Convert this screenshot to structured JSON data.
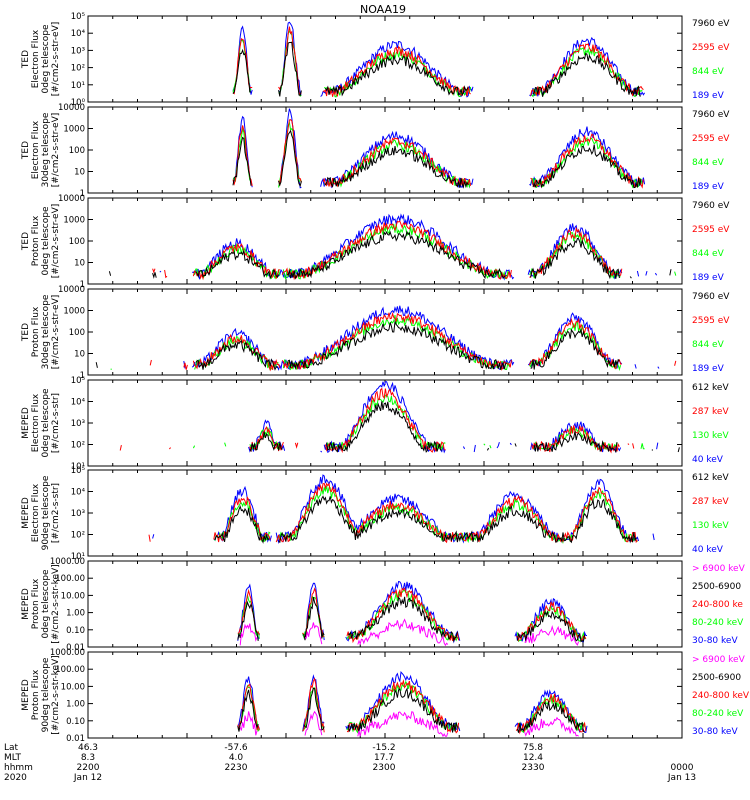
{
  "title": "NOAA19",
  "footer": {
    "rows": [
      {
        "label": "Lat",
        "values": [
          "46.3",
          "-57.6",
          "-15.2",
          "75.8",
          ""
        ]
      },
      {
        "label": "MLT",
        "values": [
          "8.3",
          "4.0",
          "17.7",
          "12.4",
          ""
        ]
      },
      {
        "label": "hhmm",
        "values": [
          "2200",
          "2230",
          "2300",
          "2330",
          "0000"
        ]
      },
      {
        "label": "2020",
        "values": [
          "Jan 12",
          "",
          "",
          "",
          "Jan 13"
        ]
      }
    ]
  },
  "colors": {
    "black": "#000000",
    "red": "#ff0000",
    "green": "#00ff00",
    "blue": "#0000ff",
    "magenta": "#ff00ff"
  },
  "chart_data": [
    {
      "type": "line",
      "ylabel": [
        "TED",
        "Electron Flux",
        "0deg telescope",
        "[#/cm2-s-str-eV]"
      ],
      "yscale": "log",
      "ylim": [
        1,
        100000
      ],
      "yticks": [
        "10⁰",
        "10¹",
        "10²",
        "10³",
        "10⁴",
        "10⁵"
      ],
      "legend": [
        {
          "label": "7960 eV",
          "color": "black"
        },
        {
          "label": "2595 eV",
          "color": "red"
        },
        {
          "label": "844 eV",
          "color": "green"
        },
        {
          "label": "189 eV",
          "color": "blue"
        }
      ]
    },
    {
      "type": "line",
      "ylabel": [
        "TED",
        "Electron Flux",
        "30deg telescope",
        "[#/cm2-s-str-eV]"
      ],
      "yscale": "log",
      "ylim": [
        1,
        10000
      ],
      "yticks": [
        "1",
        "10",
        "100",
        "1000",
        "10000"
      ],
      "legend": [
        {
          "label": "7960 eV",
          "color": "black"
        },
        {
          "label": "2595 eV",
          "color": "red"
        },
        {
          "label": "844 eV",
          "color": "green"
        },
        {
          "label": "189 eV",
          "color": "blue"
        }
      ]
    },
    {
      "type": "line",
      "ylabel": [
        "TED",
        "Proton Flux",
        "0deg telescope",
        "[#/cm2-s-str-eV]"
      ],
      "yscale": "log",
      "ylim": [
        1,
        10000
      ],
      "yticks": [
        "1",
        "10",
        "100",
        "1000",
        "10000"
      ],
      "legend": [
        {
          "label": "7960 eV",
          "color": "black"
        },
        {
          "label": "2595 eV",
          "color": "red"
        },
        {
          "label": "844 eV",
          "color": "green"
        },
        {
          "label": "189 eV",
          "color": "blue"
        }
      ]
    },
    {
      "type": "line",
      "ylabel": [
        "TED",
        "Proton Flux",
        "30deg telescope",
        "[#/cm2-s-str-eV]"
      ],
      "yscale": "log",
      "ylim": [
        1,
        10000
      ],
      "yticks": [
        "1",
        "10",
        "100",
        "1000",
        "10000"
      ],
      "legend": [
        {
          "label": "7960 eV",
          "color": "black"
        },
        {
          "label": "2595 eV",
          "color": "red"
        },
        {
          "label": "844 eV",
          "color": "green"
        },
        {
          "label": "189 eV",
          "color": "blue"
        }
      ]
    },
    {
      "type": "line",
      "ylabel": [
        "MEPED",
        "Electron Flux",
        "0deg telescope",
        "[#/cm2-s-str]"
      ],
      "yscale": "log",
      "ylim": [
        10,
        100000
      ],
      "yticks": [
        "10¹",
        "10²",
        "10³",
        "10⁴",
        "10⁵"
      ],
      "legend": [
        {
          "label": "612 keV",
          "color": "black"
        },
        {
          "label": "287 keV",
          "color": "red"
        },
        {
          "label": "130 keV",
          "color": "green"
        },
        {
          "label": "40 keV",
          "color": "blue"
        }
      ]
    },
    {
      "type": "line",
      "ylabel": [
        "MEPED",
        "Electron Flux",
        "90deg telescope",
        "[#/cm2-s-str]"
      ],
      "yscale": "log",
      "ylim": [
        10,
        100000
      ],
      "yticks": [
        "10¹",
        "10²",
        "10³",
        "10⁴",
        "10⁵"
      ],
      "legend": [
        {
          "label": "612 keV",
          "color": "black"
        },
        {
          "label": "287 keV",
          "color": "red"
        },
        {
          "label": "130 keV",
          "color": "green"
        },
        {
          "label": "40 keV",
          "color": "blue"
        }
      ]
    },
    {
      "type": "line",
      "ylabel": [
        "MEPED",
        "Proton Flux",
        "0deg telescope",
        "[#/cm2-s-str-keV]"
      ],
      "yscale": "log",
      "ylim": [
        0.01,
        1000
      ],
      "yticks": [
        "0.01",
        "0.10",
        "1.00",
        "10.00",
        "100.00",
        "1000.00"
      ],
      "legend": [
        {
          "label": "> 6900 keV",
          "color": "magenta"
        },
        {
          "label": "2500-6900",
          "color": "black"
        },
        {
          "label": "240-800 ke",
          "color": "red"
        },
        {
          "label": "80-240 keV",
          "color": "green"
        },
        {
          "label": "30-80 keV",
          "color": "blue"
        }
      ]
    },
    {
      "type": "line",
      "ylabel": [
        "MEPED",
        "Proton Flux",
        "90deg telescope",
        "[#/cm2-s-str-keV]"
      ],
      "yscale": "log",
      "ylim": [
        0.01,
        1000
      ],
      "yticks": [
        "0.01",
        "0.10",
        "1.00",
        "10.00",
        "100.00",
        "1000.00"
      ],
      "legend": [
        {
          "label": "> 6900 keV",
          "color": "magenta"
        },
        {
          "label": "2500-6900",
          "color": "black"
        },
        {
          "label": "240-800 keV",
          "color": "red"
        },
        {
          "label": "80-240 keV",
          "color": "green"
        },
        {
          "label": "30-80 keV",
          "color": "blue"
        }
      ]
    }
  ]
}
